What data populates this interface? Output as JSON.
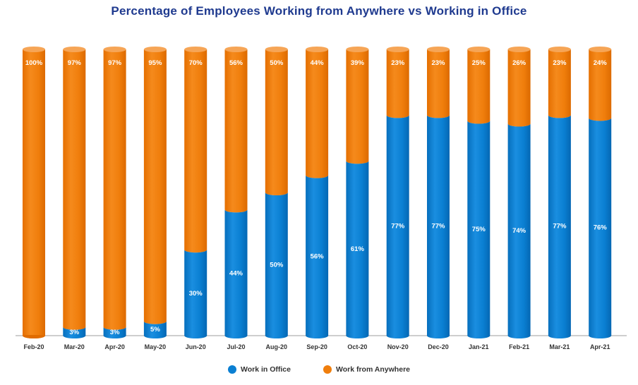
{
  "chart_data": {
    "type": "bar",
    "stacked": true,
    "style": "cylinder",
    "title": "Percentage of Employees Working from Anywhere vs Working in Office",
    "xlabel": "",
    "ylabel": "",
    "ylim": [
      0,
      100
    ],
    "grid": false,
    "legend_position": "bottom",
    "categories": [
      "Feb-20",
      "Mar-20",
      "Apr-20",
      "May-20",
      "Jun-20",
      "Jul-20",
      "Aug-20",
      "Sep-20",
      "Oct-20",
      "Nov-20",
      "Dec-20",
      "Jan-21",
      "Feb-21",
      "Mar-21",
      "Apr-21"
    ],
    "series": [
      {
        "name": "Work in Office",
        "color": "#0a7fd2",
        "values": [
          0,
          3,
          3,
          5,
          30,
          44,
          50,
          56,
          61,
          77,
          77,
          75,
          74,
          77,
          76
        ],
        "labels": [
          "",
          "3%",
          "3%",
          "5%",
          "30%",
          "44%",
          "50%",
          "56%",
          "61%",
          "77%",
          "77%",
          "75%",
          "74%",
          "77%",
          "76%"
        ]
      },
      {
        "name": "Work from Anywhere",
        "color": "#f07e0c",
        "values": [
          100,
          97,
          97,
          95,
          70,
          56,
          50,
          44,
          39,
          23,
          23,
          25,
          26,
          23,
          24
        ],
        "labels": [
          "100%",
          "97%",
          "97%",
          "95%",
          "70%",
          "56%",
          "50%",
          "44%",
          "39%",
          "23%",
          "23%",
          "25%",
          "26%",
          "23%",
          "24%"
        ]
      }
    ]
  }
}
